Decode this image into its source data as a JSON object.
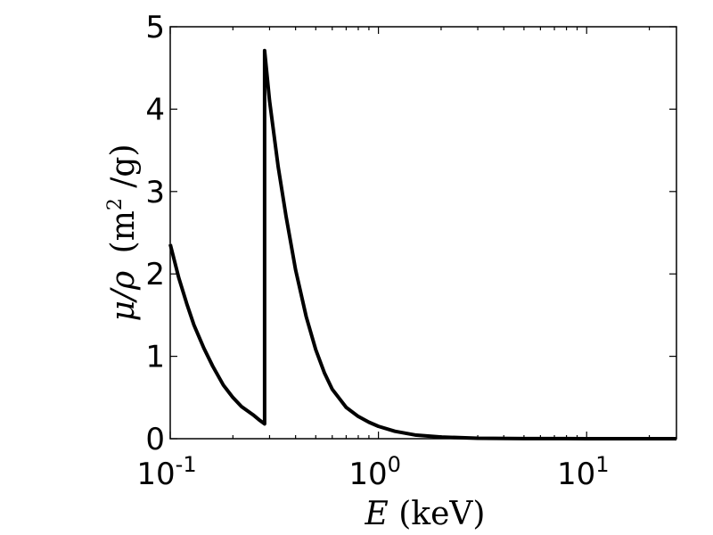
{
  "chart_data": {
    "type": "line",
    "xscale": "log",
    "xlim": [
      0.1,
      27
    ],
    "ylim": [
      0,
      5
    ],
    "grid": false,
    "xlabel": {
      "var": "E",
      "unit": "(keV)"
    },
    "ylabel": {
      "var": "μ/ρ",
      "unit_open": "(m",
      "unit_sup": "2",
      "unit_close": " /g)"
    },
    "x_ticks": [
      {
        "base": "10",
        "exp": "-1",
        "value": 0.1
      },
      {
        "base": "10",
        "exp": "0",
        "value": 1
      },
      {
        "base": "10",
        "exp": "1",
        "value": 10
      }
    ],
    "y_ticks": [
      "0",
      "1",
      "2",
      "3",
      "4",
      "5"
    ],
    "series": [
      {
        "color": "#000000",
        "points": [
          [
            0.1,
            2.36
          ],
          [
            0.11,
            1.95
          ],
          [
            0.12,
            1.64
          ],
          [
            0.13,
            1.38
          ],
          [
            0.145,
            1.1
          ],
          [
            0.16,
            0.88
          ],
          [
            0.18,
            0.65
          ],
          [
            0.2,
            0.5
          ],
          [
            0.22,
            0.39
          ],
          [
            0.25,
            0.29
          ],
          [
            0.27,
            0.22
          ],
          [
            0.284,
            0.18
          ],
          [
            0.284,
            4.71
          ],
          [
            0.3,
            4.1
          ],
          [
            0.33,
            3.3
          ],
          [
            0.36,
            2.7
          ],
          [
            0.4,
            2.05
          ],
          [
            0.45,
            1.48
          ],
          [
            0.5,
            1.08
          ],
          [
            0.55,
            0.8
          ],
          [
            0.6,
            0.6
          ],
          [
            0.7,
            0.38
          ],
          [
            0.8,
            0.27
          ],
          [
            0.9,
            0.2
          ],
          [
            1.0,
            0.15
          ],
          [
            1.2,
            0.09
          ],
          [
            1.5,
            0.045
          ],
          [
            2.0,
            0.02
          ],
          [
            3.0,
            0.006
          ],
          [
            5.0,
            0.002
          ],
          [
            10.0,
            0.0005
          ],
          [
            27.0,
            5e-05
          ]
        ]
      }
    ]
  }
}
